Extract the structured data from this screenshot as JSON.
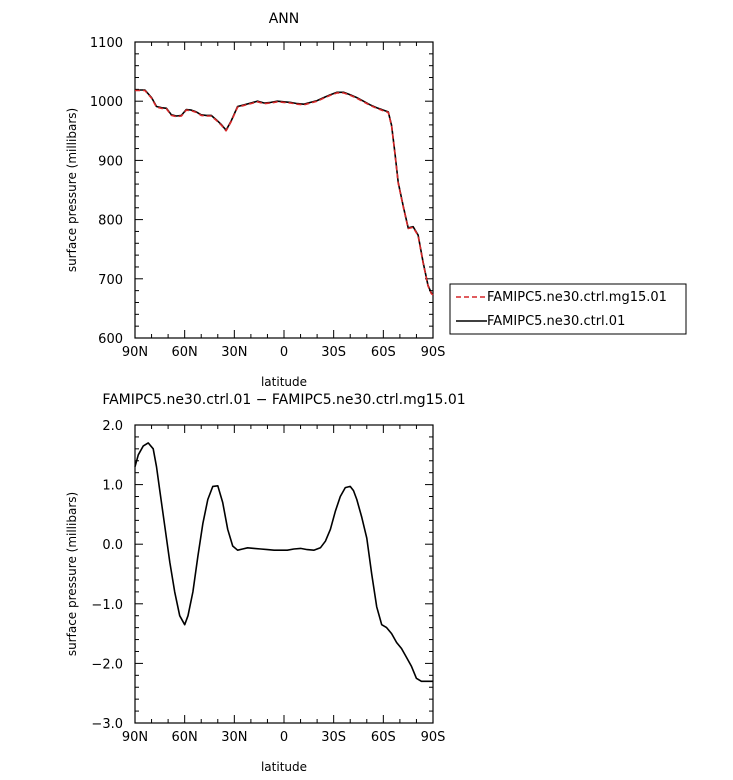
{
  "chart_data": [
    {
      "type": "line",
      "title": "ANN",
      "xlabel": "latitude",
      "ylabel": "surface pressure (millibars)",
      "xlim": [
        -90,
        90
      ],
      "ylim": [
        600,
        1100
      ],
      "x_tick_values": [
        -90,
        -60,
        -30,
        0,
        30,
        60,
        90
      ],
      "x_tick_labels": [
        "90N",
        "60N",
        "30N",
        "0",
        "30S",
        "60S",
        "90S"
      ],
      "y_tick_values": [
        600,
        700,
        800,
        900,
        1000,
        1100
      ],
      "y_tick_labels": [
        "600",
        "700",
        "800",
        "900",
        "1000",
        "1100"
      ],
      "legend_position": "right",
      "series": [
        {
          "name": "FAMIPC5.ne30.ctrl.mg15.01",
          "color": "#d62728",
          "style": "dashed",
          "x": [
            -90,
            -84,
            -80,
            -77,
            -74,
            -71,
            -68,
            -65,
            -62,
            -59,
            -56,
            -53,
            -50,
            -47,
            -44,
            -41,
            -38,
            -35,
            -32,
            -28,
            -24,
            -20,
            -16,
            -12,
            -8,
            -4,
            0,
            4,
            8,
            12,
            16,
            20,
            24,
            28,
            32,
            36,
            40,
            44,
            48,
            52,
            56,
            60,
            63,
            65,
            67,
            69,
            72,
            75,
            78,
            81,
            84,
            87,
            89,
            90
          ],
          "y": [
            1018,
            1018,
            1005,
            990,
            988,
            987,
            976,
            974,
            975,
            985,
            984,
            981,
            976,
            975,
            975,
            968,
            960,
            950,
            965,
            990,
            993,
            996,
            999,
            996,
            997,
            999,
            998,
            997,
            995,
            994,
            997,
            1000,
            1005,
            1010,
            1014,
            1014,
            1010,
            1005,
            999,
            993,
            988,
            984,
            981,
            958,
            912,
            862,
            822,
            785,
            787,
            773,
            727,
            688,
            675,
            673
          ]
        },
        {
          "name": "FAMIPC5.ne30.ctrl.01",
          "color": "#000000",
          "style": "solid",
          "x": [
            -90,
            -84,
            -80,
            -77,
            -74,
            -71,
            -68,
            -65,
            -62,
            -59,
            -56,
            -53,
            -50,
            -47,
            -44,
            -41,
            -38,
            -35,
            -32,
            -28,
            -24,
            -20,
            -16,
            -12,
            -8,
            -4,
            0,
            4,
            8,
            12,
            16,
            20,
            24,
            28,
            32,
            36,
            40,
            44,
            48,
            52,
            56,
            60,
            63,
            65,
            67,
            69,
            72,
            75,
            78,
            81,
            84,
            87,
            89,
            90
          ],
          "y": [
            1019,
            1019,
            1006,
            991,
            989,
            988,
            977,
            975,
            976,
            986,
            985,
            982,
            977,
            976,
            976,
            969,
            961,
            951,
            966,
            991,
            994,
            997,
            1000,
            997,
            998,
            1000,
            999,
            998,
            996,
            995,
            998,
            1001,
            1006,
            1011,
            1015,
            1015,
            1011,
            1006,
            1000,
            994,
            989,
            985,
            982,
            959,
            913,
            863,
            823,
            786,
            788,
            774,
            728,
            689,
            676,
            674
          ]
        }
      ]
    },
    {
      "type": "line",
      "title": "FAMIPC5.ne30.ctrl.01 − FAMIPC5.ne30.ctrl.mg15.01",
      "xlabel": "latitude",
      "ylabel": "surface pressure (millibars)",
      "xlim": [
        -90,
        90
      ],
      "ylim": [
        -3.0,
        2.0
      ],
      "x_tick_values": [
        -90,
        -60,
        -30,
        0,
        30,
        60,
        90
      ],
      "x_tick_labels": [
        "90N",
        "60N",
        "30N",
        "0",
        "30S",
        "60S",
        "90S"
      ],
      "y_tick_values": [
        -3.0,
        -2.0,
        -1.0,
        0.0,
        1.0,
        2.0
      ],
      "y_tick_labels": [
        "−3.0",
        "−2.0",
        "−1.0",
        "0.0",
        "1.0",
        "2.0"
      ],
      "series": [
        {
          "name": "",
          "color": "#000000",
          "style": "solid",
          "x": [
            -90,
            -88,
            -85,
            -82,
            -79,
            -77,
            -75,
            -72,
            -69,
            -66,
            -63,
            -60,
            -58,
            -55,
            -52,
            -49,
            -46,
            -43,
            -40,
            -37,
            -34,
            -31,
            -28,
            -25,
            -22,
            -18,
            -14,
            -10,
            -6,
            -2,
            2,
            6,
            10,
            14,
            18,
            22,
            25,
            28,
            31,
            34,
            37,
            40,
            42,
            44,
            47,
            50,
            53,
            56,
            59,
            62,
            65,
            68,
            71,
            74,
            77,
            80,
            83,
            86,
            88,
            90
          ],
          "y": [
            1.3,
            1.5,
            1.65,
            1.7,
            1.6,
            1.3,
            0.9,
            0.3,
            -0.3,
            -0.8,
            -1.2,
            -1.35,
            -1.2,
            -0.8,
            -0.2,
            0.35,
            0.75,
            0.97,
            0.98,
            0.7,
            0.25,
            -0.03,
            -0.1,
            -0.08,
            -0.06,
            -0.07,
            -0.08,
            -0.09,
            -0.1,
            -0.1,
            -0.1,
            -0.08,
            -0.07,
            -0.09,
            -0.1,
            -0.06,
            0.05,
            0.25,
            0.55,
            0.8,
            0.95,
            0.97,
            0.9,
            0.75,
            0.45,
            0.1,
            -0.5,
            -1.05,
            -1.35,
            -1.4,
            -1.5,
            -1.65,
            -1.75,
            -1.9,
            -2.05,
            -2.25,
            -2.3,
            -2.3,
            -2.3,
            -2.3
          ]
        }
      ]
    }
  ]
}
